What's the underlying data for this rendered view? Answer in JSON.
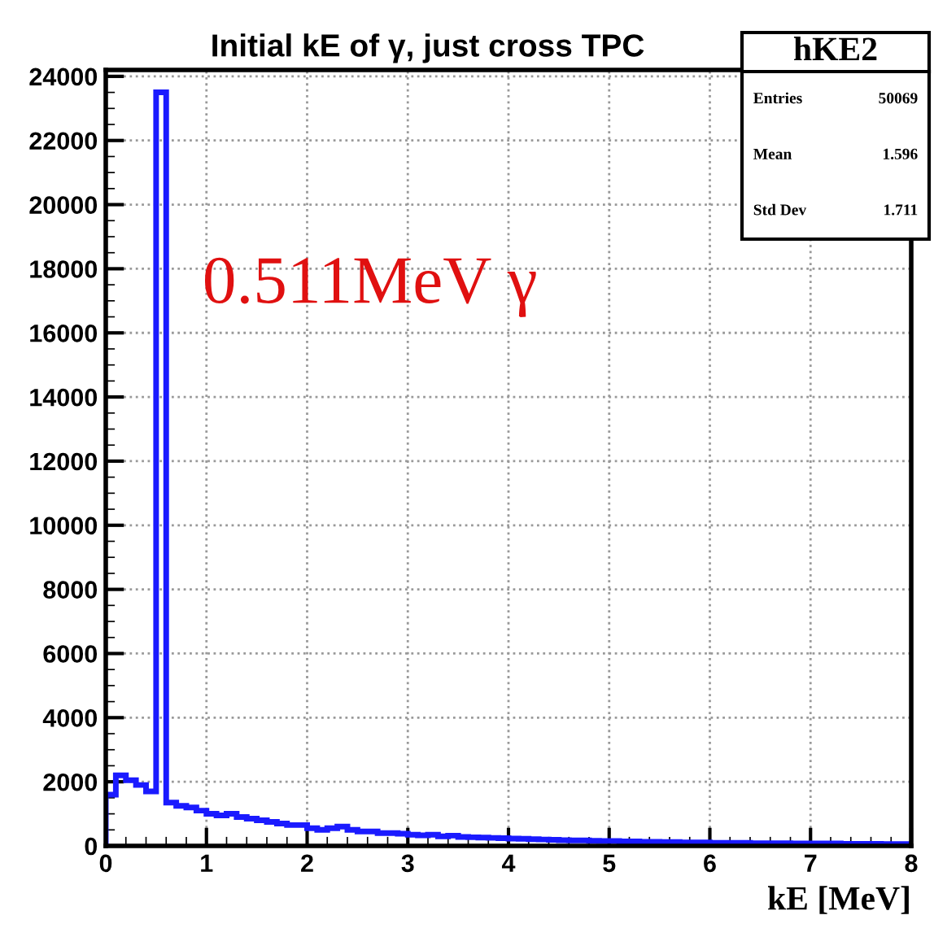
{
  "chart_data": {
    "type": "histogram",
    "title": "Initial kE of γ, just cross TPC",
    "xlabel": "kE [MeV]",
    "bins": [
      0,
      0.1,
      0.2,
      0.3,
      0.4,
      0.5,
      0.6,
      0.7,
      0.8,
      0.9,
      1.0,
      1.1,
      1.2,
      1.3,
      1.4,
      1.5,
      1.6,
      1.7,
      1.8,
      1.9,
      2.0,
      2.1,
      2.2,
      2.3,
      2.4,
      2.5,
      2.6,
      2.7,
      2.8,
      2.9,
      3.0,
      3.1,
      3.2,
      3.3,
      3.4,
      3.5,
      3.6,
      3.7,
      3.8,
      3.9,
      4.0,
      4.1,
      4.2,
      4.3,
      4.4,
      4.5,
      4.6,
      4.7,
      4.8,
      4.9,
      5.0,
      5.1,
      5.2,
      5.3,
      5.4,
      5.5,
      5.6,
      5.7,
      5.8,
      5.9,
      6.0,
      6.1,
      6.2,
      6.3,
      6.4,
      6.5,
      6.6,
      6.7,
      6.8,
      6.9,
      7.0,
      7.1,
      7.2,
      7.3,
      7.4,
      7.5,
      7.6,
      7.7,
      7.8,
      7.9,
      8.0
    ],
    "values": [
      1600,
      2200,
      2050,
      1900,
      1700,
      23500,
      1350,
      1250,
      1200,
      1100,
      1000,
      950,
      1000,
      900,
      850,
      800,
      750,
      700,
      650,
      650,
      550,
      500,
      550,
      600,
      500,
      450,
      450,
      400,
      400,
      380,
      350,
      330,
      350,
      300,
      320,
      280,
      270,
      260,
      250,
      240,
      230,
      220,
      210,
      200,
      190,
      180,
      170,
      170,
      160,
      150,
      150,
      140,
      140,
      130,
      130,
      120,
      120,
      110,
      110,
      110,
      100,
      100,
      100,
      95,
      90,
      90,
      85,
      85,
      80,
      80,
      80,
      75,
      75,
      70,
      70,
      65,
      65,
      60,
      60,
      60
    ],
    "color": "#1a1aff",
    "xlim": [
      0,
      8
    ],
    "ylim": [
      0,
      24200
    ],
    "xticks": [
      0,
      1,
      2,
      3,
      4,
      5,
      6,
      7,
      8
    ],
    "yticks": [
      0,
      2000,
      4000,
      6000,
      8000,
      10000,
      12000,
      14000,
      16000,
      18000,
      20000,
      22000,
      24000
    ],
    "grid": true,
    "annotations": [
      "0.511MeV γ",
      "hKE2",
      "Entries",
      "50069",
      "Mean",
      "1.596",
      "Std Dev",
      "1.711"
    ]
  }
}
